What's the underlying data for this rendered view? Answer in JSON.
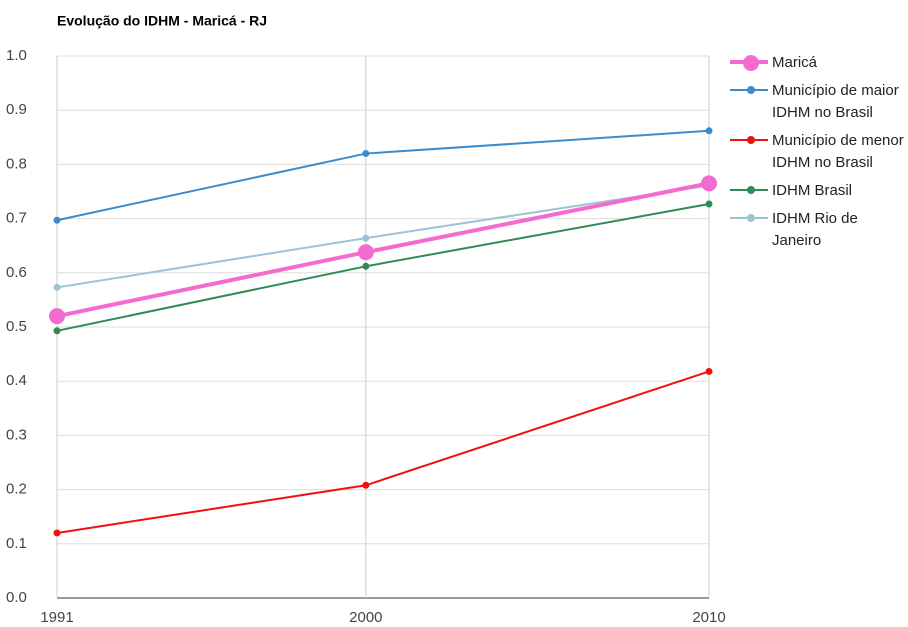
{
  "chart_data": {
    "type": "line",
    "title": "Evolução do IDHM - Maricá - RJ",
    "x": [
      1991,
      2000,
      2010
    ],
    "series": [
      {
        "name": "Maricá",
        "color": "#f46bd0",
        "values": [
          0.52,
          0.638,
          0.765
        ]
      },
      {
        "name": "Município de maior IDHM no Brasil",
        "color": "#3a8ccf",
        "values": [
          0.697,
          0.82,
          0.862
        ]
      },
      {
        "name": "Município de menor IDHM no Brasil",
        "color": "#f01010",
        "values": [
          0.12,
          0.208,
          0.418
        ]
      },
      {
        "name": "IDHM Brasil",
        "color": "#2e8b57",
        "values": [
          0.493,
          0.612,
          0.727
        ]
      },
      {
        "name": "IDHM Rio de Janeiro",
        "color": "#9dc3d5",
        "values": [
          0.573,
          0.664,
          0.761
        ]
      }
    ],
    "xlim": [
      1991,
      2010
    ],
    "xticks": [
      1991,
      2000,
      2010
    ],
    "ylim": [
      0,
      1
    ],
    "yticks": [
      {
        "value": 0,
        "label": "0.0"
      },
      0.1,
      0.2,
      0.3,
      0.4,
      0.5,
      0.6,
      0.7,
      0.8,
      0.9,
      {
        "value": 1,
        "label": "1.0"
      }
    ],
    "grid": true,
    "legend": "right"
  }
}
